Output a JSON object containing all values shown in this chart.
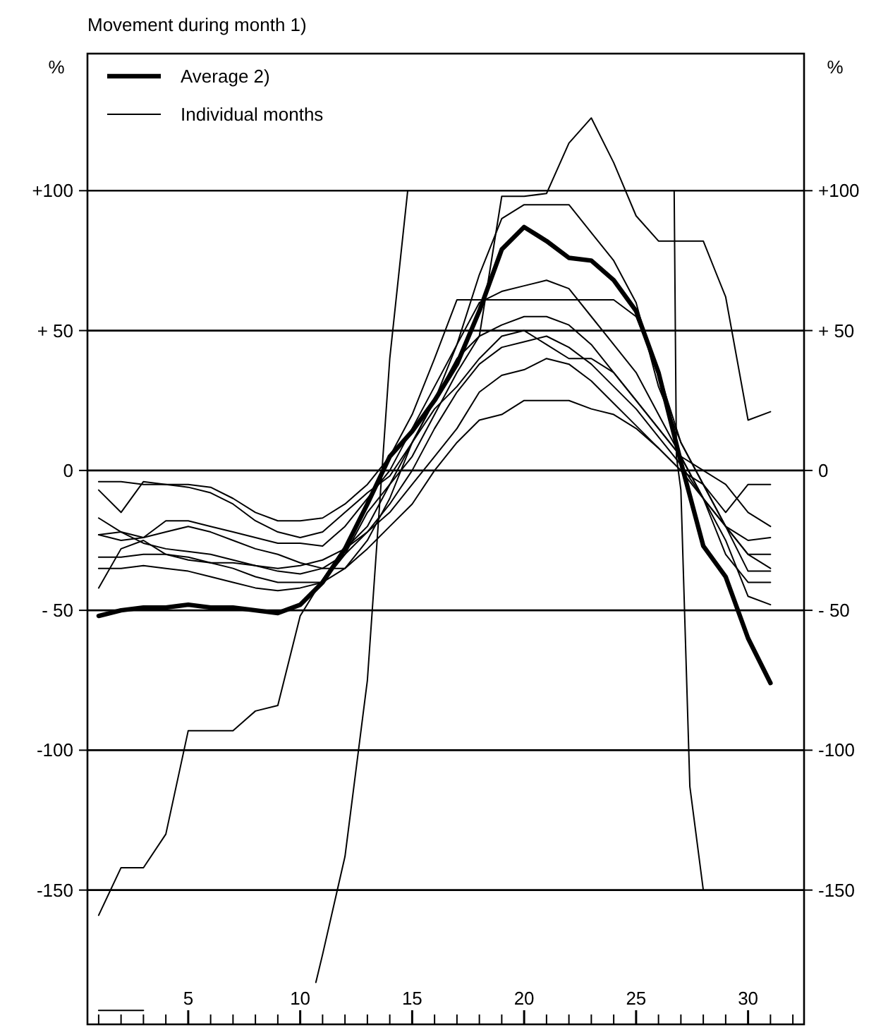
{
  "chart_data": {
    "type": "line",
    "title": "Movement during month 1)",
    "ylabel": "%",
    "y2label": "%",
    "xlim": [
      0.5,
      32.5
    ],
    "xticks": [
      {
        "value": 1,
        "label": null
      },
      {
        "value": 2,
        "label": null
      },
      {
        "value": 3,
        "label": null
      },
      {
        "value": 4,
        "label": null
      },
      5,
      {
        "value": 6,
        "label": null
      },
      {
        "value": 7,
        "label": null
      },
      {
        "value": 8,
        "label": null
      },
      {
        "value": 9,
        "label": null
      },
      10,
      {
        "value": 11,
        "label": null
      },
      {
        "value": 12,
        "label": null
      },
      {
        "value": 13,
        "label": null
      },
      {
        "value": 14,
        "label": null
      },
      15,
      {
        "value": 16,
        "label": null
      },
      {
        "value": 17,
        "label": null
      },
      {
        "value": 18,
        "label": null
      },
      {
        "value": 19,
        "label": null
      },
      20,
      {
        "value": 21,
        "label": null
      },
      {
        "value": 22,
        "label": null
      },
      {
        "value": 23,
        "label": null
      },
      {
        "value": 24,
        "label": null
      },
      25,
      {
        "value": 26,
        "label": null
      },
      {
        "value": 27,
        "label": null
      },
      {
        "value": 28,
        "label": null
      },
      {
        "value": 29,
        "label": null
      },
      30,
      {
        "value": 31,
        "label": null
      },
      {
        "value": 32,
        "label": null
      }
    ],
    "ylim": [
      -198,
      149
    ],
    "yticks": [
      {
        "value": 100,
        "label": "+100"
      },
      {
        "value": 50,
        "label": "+ 50"
      },
      0,
      {
        "value": -50,
        "label": "- 50"
      },
      -100,
      -150
    ],
    "y2lim": [
      -198,
      149
    ],
    "y2ticks": [
      {
        "value": 100,
        "label": "+100"
      },
      {
        "value": 50,
        "label": "+ 50"
      },
      0,
      {
        "value": -50,
        "label": "- 50"
      },
      -100,
      -150
    ],
    "grid": "y",
    "legend": "top left",
    "marker": "none",
    "line_style": "solid",
    "x": [
      1,
      2,
      3,
      4,
      5,
      6,
      7,
      8,
      9,
      10,
      11,
      12,
      13,
      14,
      15,
      16,
      17,
      18,
      19,
      20,
      21,
      22,
      23,
      24,
      25,
      26,
      27,
      28,
      29,
      30,
      31
    ],
    "series": [
      {
        "name": "Average 2)",
        "color": "#000000",
        "values": [
          -52,
          -50,
          -49,
          -49,
          -48,
          -49,
          -49,
          -50,
          -51,
          -48,
          -40,
          -28,
          -12,
          5,
          14,
          25,
          38,
          57,
          79,
          87,
          82,
          76,
          75,
          68,
          57,
          35,
          3,
          -27,
          -38,
          -60,
          -76
        ]
      },
      {
        "name": "Individual months",
        "color": "#000000",
        "values": [
          -31,
          -31,
          -30,
          -30,
          -31,
          -33,
          -35,
          -38,
          -40,
          -40,
          -40,
          -30,
          -15,
          -5,
          5,
          20,
          35,
          48,
          98,
          98,
          99,
          117,
          126,
          110,
          91,
          82,
          82,
          82,
          62,
          18,
          21
        ]
      },
      {
        "color": "#000000",
        "values": [
          -17,
          -22,
          -24,
          -22,
          -20,
          -22,
          -25,
          -28,
          -30,
          -33,
          -35,
          -35,
          -25,
          -10,
          10,
          25,
          45,
          70,
          90,
          95,
          95,
          95,
          85,
          75,
          60,
          30,
          10,
          -5,
          -20,
          -25,
          -24
        ]
      },
      {
        "color": "#000000",
        "values": [
          -23,
          -25,
          -24,
          -18,
          -18,
          -20,
          -22,
          -24,
          -26,
          -26,
          -27,
          -20,
          -10,
          0,
          15,
          30,
          45,
          60,
          64,
          66,
          68,
          65,
          55,
          45,
          35,
          20,
          5,
          -10,
          -20,
          -30,
          -30
        ]
      },
      {
        "color": "#000000",
        "values": [
          -4,
          -4,
          -5,
          -5,
          -5,
          -6,
          -10,
          -15,
          -18,
          -18,
          -17,
          -12,
          -5,
          5,
          20,
          40,
          61,
          61,
          61,
          61,
          61,
          61,
          61,
          61,
          55,
          35,
          10,
          -5,
          -20,
          -36,
          -36
        ]
      },
      {
        "color": "#000000",
        "values": [
          -7,
          -15,
          -4,
          -5,
          -6,
          -8,
          -12,
          -18,
          -22,
          -24,
          -22,
          -15,
          -8,
          -2,
          10,
          25,
          40,
          48,
          52,
          55,
          55,
          52,
          45,
          35,
          25,
          15,
          5,
          0,
          -5,
          -15,
          -20
        ]
      },
      {
        "color": "#000000",
        "values": [
          -42,
          -28,
          -25,
          -30,
          -32,
          -33,
          -33,
          -34,
          -36,
          -37,
          -35,
          -30,
          -22,
          -12,
          0,
          15,
          28,
          38,
          44,
          46,
          48,
          44,
          38,
          30,
          22,
          12,
          2,
          -10,
          -30,
          -40,
          -40
        ]
      },
      {
        "color": "#000000",
        "values": [
          -23,
          -22,
          -26,
          -28,
          -29,
          -30,
          -32,
          -34,
          -35,
          -34,
          -32,
          -28,
          -22,
          -15,
          -5,
          5,
          15,
          28,
          34,
          36,
          40,
          38,
          32,
          24,
          16,
          8,
          0,
          -10,
          -25,
          -45,
          -48
        ]
      },
      {
        "color": "#000000",
        "values": [
          -35,
          -35,
          -34,
          -35,
          -36,
          -38,
          -40,
          -42,
          -43,
          -42,
          -40,
          -35,
          -28,
          -20,
          -12,
          0,
          10,
          18,
          20,
          25,
          25,
          25,
          22,
          20,
          15,
          8,
          0,
          -5,
          -15,
          -5,
          -5
        ]
      },
      {
        "color": "#000000",
        "values": [
          -159,
          -142,
          -142,
          -130,
          -93,
          -93,
          -93,
          -86,
          -84,
          -52,
          -39,
          -28,
          -20,
          -5,
          10,
          22,
          30,
          40,
          48,
          50,
          45,
          40,
          40,
          35,
          25,
          15,
          5,
          -10,
          -20,
          -30,
          -35
        ]
      },
      {
        "color": "#000000",
        "x": [
          1,
          2,
          3
        ],
        "values": [
          -193,
          -193,
          -193
        ]
      },
      {
        "color": "#000000",
        "x": [
          10.7,
          11,
          12,
          13,
          14,
          14.8
        ],
        "values": [
          -183,
          -173,
          -138,
          -75,
          40,
          100
        ]
      },
      {
        "color": "#000000",
        "x": [
          26.7,
          26.8,
          27,
          27.4,
          28
        ],
        "values": [
          100,
          5,
          -7,
          -113,
          -150
        ]
      }
    ]
  }
}
